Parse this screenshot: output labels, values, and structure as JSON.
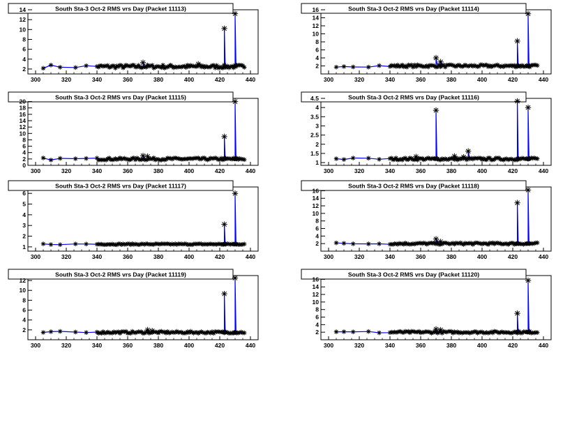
{
  "colors": {
    "line": "#0000ff",
    "marker": "#000000",
    "frame": "#000000",
    "background": "#ffffff"
  },
  "chart_data": [
    {
      "type": "line",
      "title": "South Sta-3 Oct-2 RMS vrs Day (Packet 11113)",
      "xlim": [
        295,
        445
      ],
      "ylim": [
        1,
        14
      ],
      "xticks": [
        300,
        320,
        340,
        360,
        380,
        400,
        420,
        440
      ],
      "yticks": [
        2,
        4,
        6,
        8,
        10,
        12,
        14
      ],
      "baseline": 2.5,
      "noise": 0.35,
      "extra_points": [
        [
          370,
          3.3
        ],
        [
          406,
          3.0
        ]
      ],
      "spikes": [
        [
          423,
          10.2
        ],
        [
          430,
          13.2
        ]
      ]
    },
    {
      "type": "line",
      "title": "South Sta-3 Oct-2 RMS vrs Day (Packet 11114)",
      "xlim": [
        295,
        445
      ],
      "ylim": [
        0,
        16
      ],
      "xticks": [
        300,
        320,
        340,
        360,
        380,
        400,
        420,
        440
      ],
      "yticks": [
        2,
        4,
        6,
        8,
        10,
        12,
        14,
        16
      ],
      "baseline": 2.0,
      "noise": 0.3,
      "extra_points": [
        [
          370,
          4.0
        ],
        [
          373,
          3.0
        ]
      ],
      "spikes": [
        [
          423,
          8.2
        ],
        [
          430,
          15.0
        ]
      ]
    },
    {
      "type": "line",
      "title": "South Sta-3 Oct-2 RMS vrs Day (Packet 11115)",
      "xlim": [
        295,
        445
      ],
      "ylim": [
        0,
        21
      ],
      "xticks": [
        300,
        320,
        340,
        360,
        380,
        400,
        420,
        440
      ],
      "yticks": [
        0,
        2,
        4,
        6,
        8,
        10,
        12,
        14,
        16,
        18,
        20
      ],
      "baseline": 2.0,
      "noise": 0.35,
      "extra_points": [
        [
          370,
          3.0
        ],
        [
          373,
          2.8
        ]
      ],
      "spikes": [
        [
          423,
          9.0
        ],
        [
          430,
          20.0
        ]
      ]
    },
    {
      "type": "line",
      "title": "South Sta-3 Oct-2 RMS vrs Day (Packet 11116)",
      "xlim": [
        295,
        445
      ],
      "ylim": [
        0.85,
        4.5
      ],
      "xticks": [
        300,
        320,
        340,
        360,
        380,
        400,
        420,
        440
      ],
      "yticks": [
        1,
        1.5,
        2,
        2.5,
        3,
        3.5,
        4,
        4.5
      ],
      "baseline": 1.2,
      "noise": 0.06,
      "extra_points": [
        [
          357,
          1.32
        ],
        [
          382,
          1.35
        ],
        [
          388,
          1.3
        ],
        [
          391,
          1.62
        ]
      ],
      "spikes": [
        [
          370,
          3.85
        ],
        [
          423,
          4.35
        ],
        [
          430,
          4.0
        ]
      ]
    },
    {
      "type": "line",
      "title": "South Sta-3 Oct-2 RMS vrs Day (Packet 11117)",
      "xlim": [
        295,
        445
      ],
      "ylim": [
        0.6,
        6.6
      ],
      "xticks": [
        300,
        320,
        340,
        360,
        380,
        400,
        420,
        440
      ],
      "yticks": [
        1,
        2,
        3,
        4,
        5,
        6
      ],
      "baseline": 1.25,
      "noise": 0.05,
      "extra_points": [],
      "spikes": [
        [
          423,
          3.1
        ],
        [
          430,
          6.0
        ]
      ]
    },
    {
      "type": "line",
      "title": "South Sta-3 Oct-2 RMS vrs Day (Packet 11118)",
      "xlim": [
        295,
        445
      ],
      "ylim": [
        0,
        17
      ],
      "xticks": [
        300,
        320,
        340,
        360,
        380,
        400,
        420,
        440
      ],
      "yticks": [
        2,
        4,
        6,
        8,
        10,
        12,
        14,
        16
      ],
      "baseline": 2.0,
      "noise": 0.25,
      "extra_points": [
        [
          370,
          3.2
        ],
        [
          373,
          2.5
        ]
      ],
      "spikes": [
        [
          423,
          12.8
        ],
        [
          430,
          16.2
        ]
      ]
    },
    {
      "type": "line",
      "title": "South Sta-3 Oct-2 RMS vrs Day (Packet 11119)",
      "xlim": [
        295,
        445
      ],
      "ylim": [
        0,
        13
      ],
      "xticks": [
        300,
        320,
        340,
        360,
        380,
        400,
        420,
        440
      ],
      "yticks": [
        2,
        4,
        6,
        8,
        10,
        12
      ],
      "baseline": 1.5,
      "noise": 0.2,
      "extra_points": [
        [
          373,
          2.0
        ],
        [
          376,
          1.8
        ]
      ],
      "spikes": [
        [
          423,
          9.3
        ],
        [
          430,
          12.5
        ]
      ]
    },
    {
      "type": "line",
      "title": "South Sta-3 Oct-2 RMS vrs Day (Packet 11120)",
      "xlim": [
        295,
        445
      ],
      "ylim": [
        0,
        17
      ],
      "xticks": [
        300,
        320,
        340,
        360,
        380,
        400,
        420,
        440
      ],
      "yticks": [
        2,
        4,
        6,
        8,
        10,
        12,
        14,
        16
      ],
      "baseline": 2.0,
      "noise": 0.25,
      "extra_points": [
        [
          370,
          2.8
        ],
        [
          373,
          2.6
        ]
      ],
      "spikes": [
        [
          423,
          7.0
        ],
        [
          430,
          15.7
        ]
      ]
    }
  ]
}
